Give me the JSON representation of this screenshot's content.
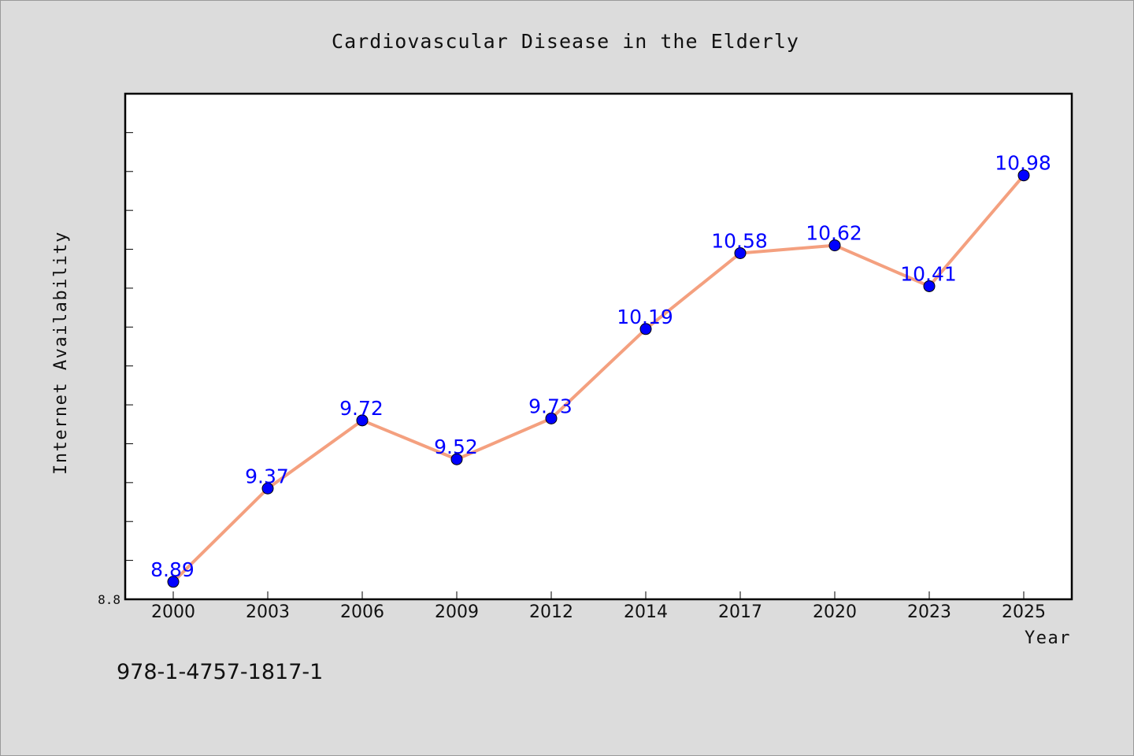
{
  "chart_data": {
    "type": "line",
    "title": "Cardiovascular Disease in the Elderly",
    "xlabel": "Year",
    "ylabel": "Internet Availability",
    "categories": [
      "2000",
      "2003",
      "2006",
      "2009",
      "2012",
      "2014",
      "2017",
      "2020",
      "2023",
      "2025"
    ],
    "series": [
      {
        "values": [
          8.89,
          9.37,
          9.72,
          9.52,
          9.73,
          10.19,
          10.58,
          10.62,
          10.41,
          10.98
        ],
        "labels": [
          "8.89",
          "9.37",
          "9.72",
          "9.52",
          "9.73",
          "10.19",
          "10.58",
          "10.62",
          "10.41",
          "10.98"
        ],
        "line_color": "#f4a07f",
        "marker_color": "#0000ff"
      }
    ],
    "ylim": [
      8.8,
      11.4
    ],
    "ytick_labels": [
      "8.8"
    ],
    "grid": false,
    "legend": "none"
  },
  "footer_text": "978-1-4757-1817-1"
}
